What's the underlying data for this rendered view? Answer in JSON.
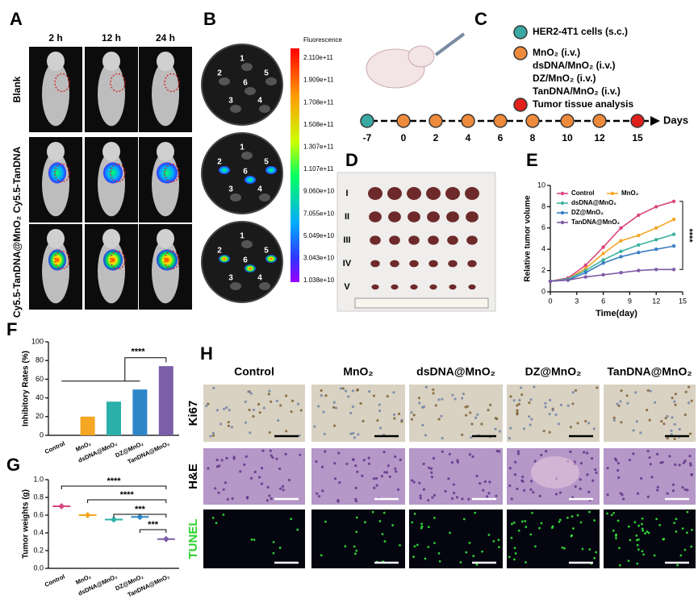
{
  "panels": {
    "A": {
      "label": "A",
      "columns": [
        "2 h",
        "12 h",
        "24 h"
      ],
      "rows": [
        "Blank",
        "Cy5.5-TanDNA",
        "Cy5.5-TanDNA@MnO₂"
      ]
    },
    "B": {
      "label": "B",
      "scale_title": "Fluorescence",
      "scale_labels": [
        "2.110e+11",
        "1.909e+11",
        "1.708e+11",
        "1.508e+11",
        "1.307e+11",
        "1.107e+11",
        "9.060e+10",
        "7.055e+10",
        "5.049e+10",
        "3.043e+10",
        "1.038e+10"
      ],
      "dishes": [
        [
          "1",
          "2",
          "3",
          "4",
          "5",
          "6"
        ],
        [
          "1",
          "2",
          "3",
          "4",
          "5",
          "6"
        ],
        [
          "1",
          "2",
          "3",
          "4",
          "5",
          "6"
        ]
      ]
    },
    "C": {
      "label": "C",
      "legend": [
        {
          "text": "HER2-4T1 cells (s.c.)",
          "color": "#3aa9a4"
        },
        {
          "text": "MnO₂ (i.v.)",
          "color": "#ee8a3c"
        },
        {
          "text": "dsDNA/MnO₂ (i.v.)",
          "color": null
        },
        {
          "text": "DZ/MnO₂ (i.v.)",
          "color": null
        },
        {
          "text": "TanDNA/MnO₂ (i.v.)",
          "color": null
        },
        {
          "text": "Tumor tissue analysis",
          "color": "#e0201b"
        }
      ],
      "timeline": {
        "days": [
          -7,
          0,
          2,
          4,
          6,
          8,
          10,
          12,
          15
        ],
        "axis_label": "Days"
      }
    },
    "D": {
      "label": "D",
      "rows": [
        "I",
        "II",
        "III",
        "IV",
        "V"
      ]
    },
    "E": {
      "label": "E"
    },
    "F": {
      "label": "F"
    },
    "G": {
      "label": "G"
    },
    "H": {
      "label": "H",
      "columns": [
        "Control",
        "MnO₂",
        "dsDNA@MnO₂",
        "DZ@MnO₂",
        "TanDNA@MnO₂"
      ],
      "rows": [
        "Ki67",
        "H&E",
        "TUNEL"
      ]
    }
  },
  "chart_data": [
    {
      "type": "line",
      "x": [
        0,
        2,
        4,
        6,
        8,
        10,
        12,
        14
      ],
      "series": [
        {
          "name": "Control",
          "color": "#d9467f",
          "values": [
            1.0,
            1.3,
            2.5,
            4.2,
            6.0,
            7.2,
            8.0,
            8.5
          ]
        },
        {
          "name": "MnO₂",
          "color": "#f5a623",
          "values": [
            1.0,
            1.2,
            2.2,
            3.6,
            4.8,
            5.3,
            6.0,
            6.8
          ]
        },
        {
          "name": "dsDNA@MnO₂",
          "color": "#3bb3a0",
          "values": [
            1.0,
            1.2,
            2.0,
            3.0,
            3.8,
            4.4,
            4.9,
            5.4
          ]
        },
        {
          "name": "DZ@MnO₂",
          "color": "#3a7ec2",
          "values": [
            1.0,
            1.1,
            1.8,
            2.7,
            3.3,
            3.7,
            4.0,
            4.3
          ]
        },
        {
          "name": "TanDNA@MnO₂",
          "color": "#7e5aa6",
          "values": [
            1.0,
            1.1,
            1.4,
            1.6,
            1.8,
            2.0,
            2.1,
            2.1
          ]
        }
      ],
      "xlim": [
        0,
        15
      ],
      "xticks": [
        0,
        3,
        6,
        9,
        12,
        15
      ],
      "ylim": [
        0,
        10
      ],
      "yticks": [
        0,
        2,
        4,
        6,
        8,
        10
      ],
      "xlabel": "Time(day)",
      "ylabel": "Relative tumor volume",
      "annotations": [
        "****"
      ]
    },
    {
      "type": "bar",
      "categories": [
        "Control",
        "MnO₂",
        "dsDNA@MnO₂",
        "DZ@MnO₂",
        "TanDNA@MnO₂"
      ],
      "values": [
        0,
        20,
        36,
        49,
        74
      ],
      "colors": [
        "#d9467f",
        "#f5a623",
        "#2ab0a8",
        "#2e86c8",
        "#7b5ea7"
      ],
      "ylim": [
        0,
        100
      ],
      "yticks": [
        0,
        20,
        40,
        60,
        80,
        100
      ],
      "ylabel": "Inhibitory Rates (%)",
      "annotations": [
        "****"
      ]
    },
    {
      "type": "dot",
      "categories": [
        "Control",
        "MnO₂",
        "dsDNA@MnO₂",
        "DZ@MnO₂",
        "TanDNA@MnO₂"
      ],
      "values": [
        0.7,
        0.6,
        0.55,
        0.58,
        0.33
      ],
      "colors": [
        "#d9467f",
        "#f5a623",
        "#2ab0a8",
        "#2e86c8",
        "#7b5ea7"
      ],
      "ylim": [
        0,
        1
      ],
      "yticks": [
        {
          "value": 0,
          "label": "0.0"
        },
        0.2,
        0.4,
        0.6,
        0.8,
        {
          "value": 1,
          "label": "1.0"
        }
      ],
      "ylabel": "Tumor weights (g)",
      "annotations": [
        "****",
        "****",
        "***",
        "***"
      ]
    }
  ]
}
